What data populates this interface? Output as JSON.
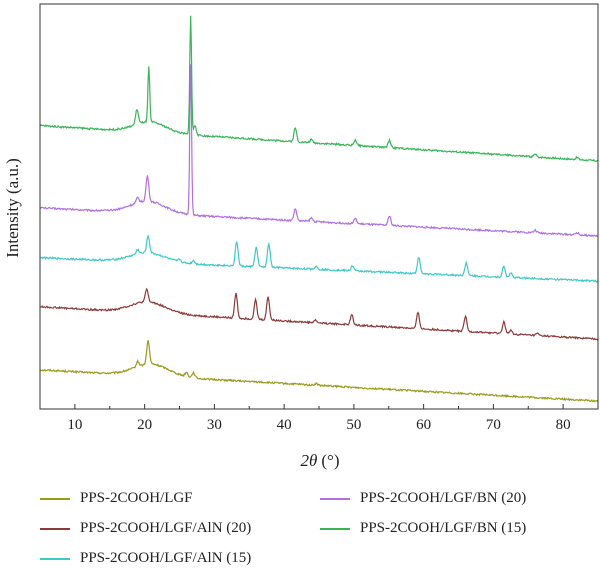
{
  "chart_data": {
    "type": "line",
    "title": "",
    "xlabel_main": "2θ",
    "xlabel_unit": "(°)",
    "ylabel": "Intensity (a.u.)",
    "xlim": [
      5,
      85
    ],
    "xticks": [
      10,
      20,
      30,
      40,
      50,
      60,
      70,
      80
    ],
    "y_tick_labels_shown": false,
    "grid": false,
    "legend_position": "bottom",
    "series": [
      {
        "name": "PPS-2COOH/LGF",
        "color": "#9a9a1e",
        "baseline_start": 0.92,
        "baseline_end": 0.185,
        "hump": {
          "center": 21.0,
          "width": 3.5,
          "height": 0.28
        },
        "peaks": [
          [
            19.0,
            0.12
          ],
          [
            20.5,
            0.55
          ],
          [
            26.0,
            0.1
          ],
          [
            27.0,
            0.12
          ],
          [
            44.6,
            0.04
          ]
        ]
      },
      {
        "name": "PPS-2COOH/LGF/AlN (20)",
        "color": "#8b3a3a",
        "baseline_start": 2.4,
        "baseline_end": 1.64,
        "hump": {
          "center": 20.5,
          "width": 3.5,
          "height": 0.26
        },
        "peaks": [
          [
            20.3,
            0.3
          ],
          [
            33.1,
            0.58
          ],
          [
            35.9,
            0.45
          ],
          [
            37.7,
            0.55
          ],
          [
            44.5,
            0.06
          ],
          [
            49.7,
            0.23
          ],
          [
            59.2,
            0.38
          ],
          [
            66.0,
            0.35
          ],
          [
            71.5,
            0.28
          ],
          [
            72.5,
            0.08
          ],
          [
            76.3,
            0.05
          ]
        ]
      },
      {
        "name": "PPS-2COOH/LGF/AlN (15)",
        "color": "#40c8c8",
        "baseline_start": 3.55,
        "baseline_end": 3.0,
        "hump": {
          "center": 20.5,
          "width": 3.5,
          "height": 0.22
        },
        "peaks": [
          [
            19.0,
            0.1
          ],
          [
            20.5,
            0.4
          ],
          [
            25.0,
            0.06
          ],
          [
            27.0,
            0.08
          ],
          [
            33.2,
            0.58
          ],
          [
            36.0,
            0.45
          ],
          [
            37.8,
            0.55
          ],
          [
            44.6,
            0.07
          ],
          [
            49.8,
            0.12
          ],
          [
            59.3,
            0.38
          ],
          [
            66.1,
            0.3
          ],
          [
            71.5,
            0.25
          ],
          [
            72.5,
            0.1
          ]
        ]
      },
      {
        "name": "PPS-2COOH/LGF/BN (20)",
        "color": "#b070e0",
        "baseline_start": 4.72,
        "baseline_end": 4.06,
        "hump": {
          "center": 20.5,
          "width": 3.5,
          "height": 0.28
        },
        "peaks": [
          [
            19.0,
            0.12
          ],
          [
            20.4,
            0.6
          ],
          [
            26.6,
            3.55
          ],
          [
            41.6,
            0.28
          ],
          [
            43.9,
            0.08
          ],
          [
            50.2,
            0.12
          ],
          [
            55.1,
            0.22
          ],
          [
            76.0,
            0.06
          ],
          [
            82.0,
            0.05
          ]
        ]
      },
      {
        "name": "PPS-2COOH/LGF/BN (15)",
        "color": "#3ab35a",
        "baseline_start": 6.65,
        "baseline_end": 5.82,
        "hump": {
          "center": 20.8,
          "width": 3.2,
          "height": 0.25
        },
        "peaks": [
          [
            18.9,
            0.35
          ],
          [
            20.6,
            1.3
          ],
          [
            26.6,
            2.8
          ],
          [
            27.2,
            0.22
          ],
          [
            41.6,
            0.32
          ],
          [
            43.9,
            0.07
          ],
          [
            50.2,
            0.13
          ],
          [
            55.1,
            0.17
          ],
          [
            76.0,
            0.06
          ],
          [
            82.0,
            0.05
          ]
        ]
      }
    ]
  }
}
